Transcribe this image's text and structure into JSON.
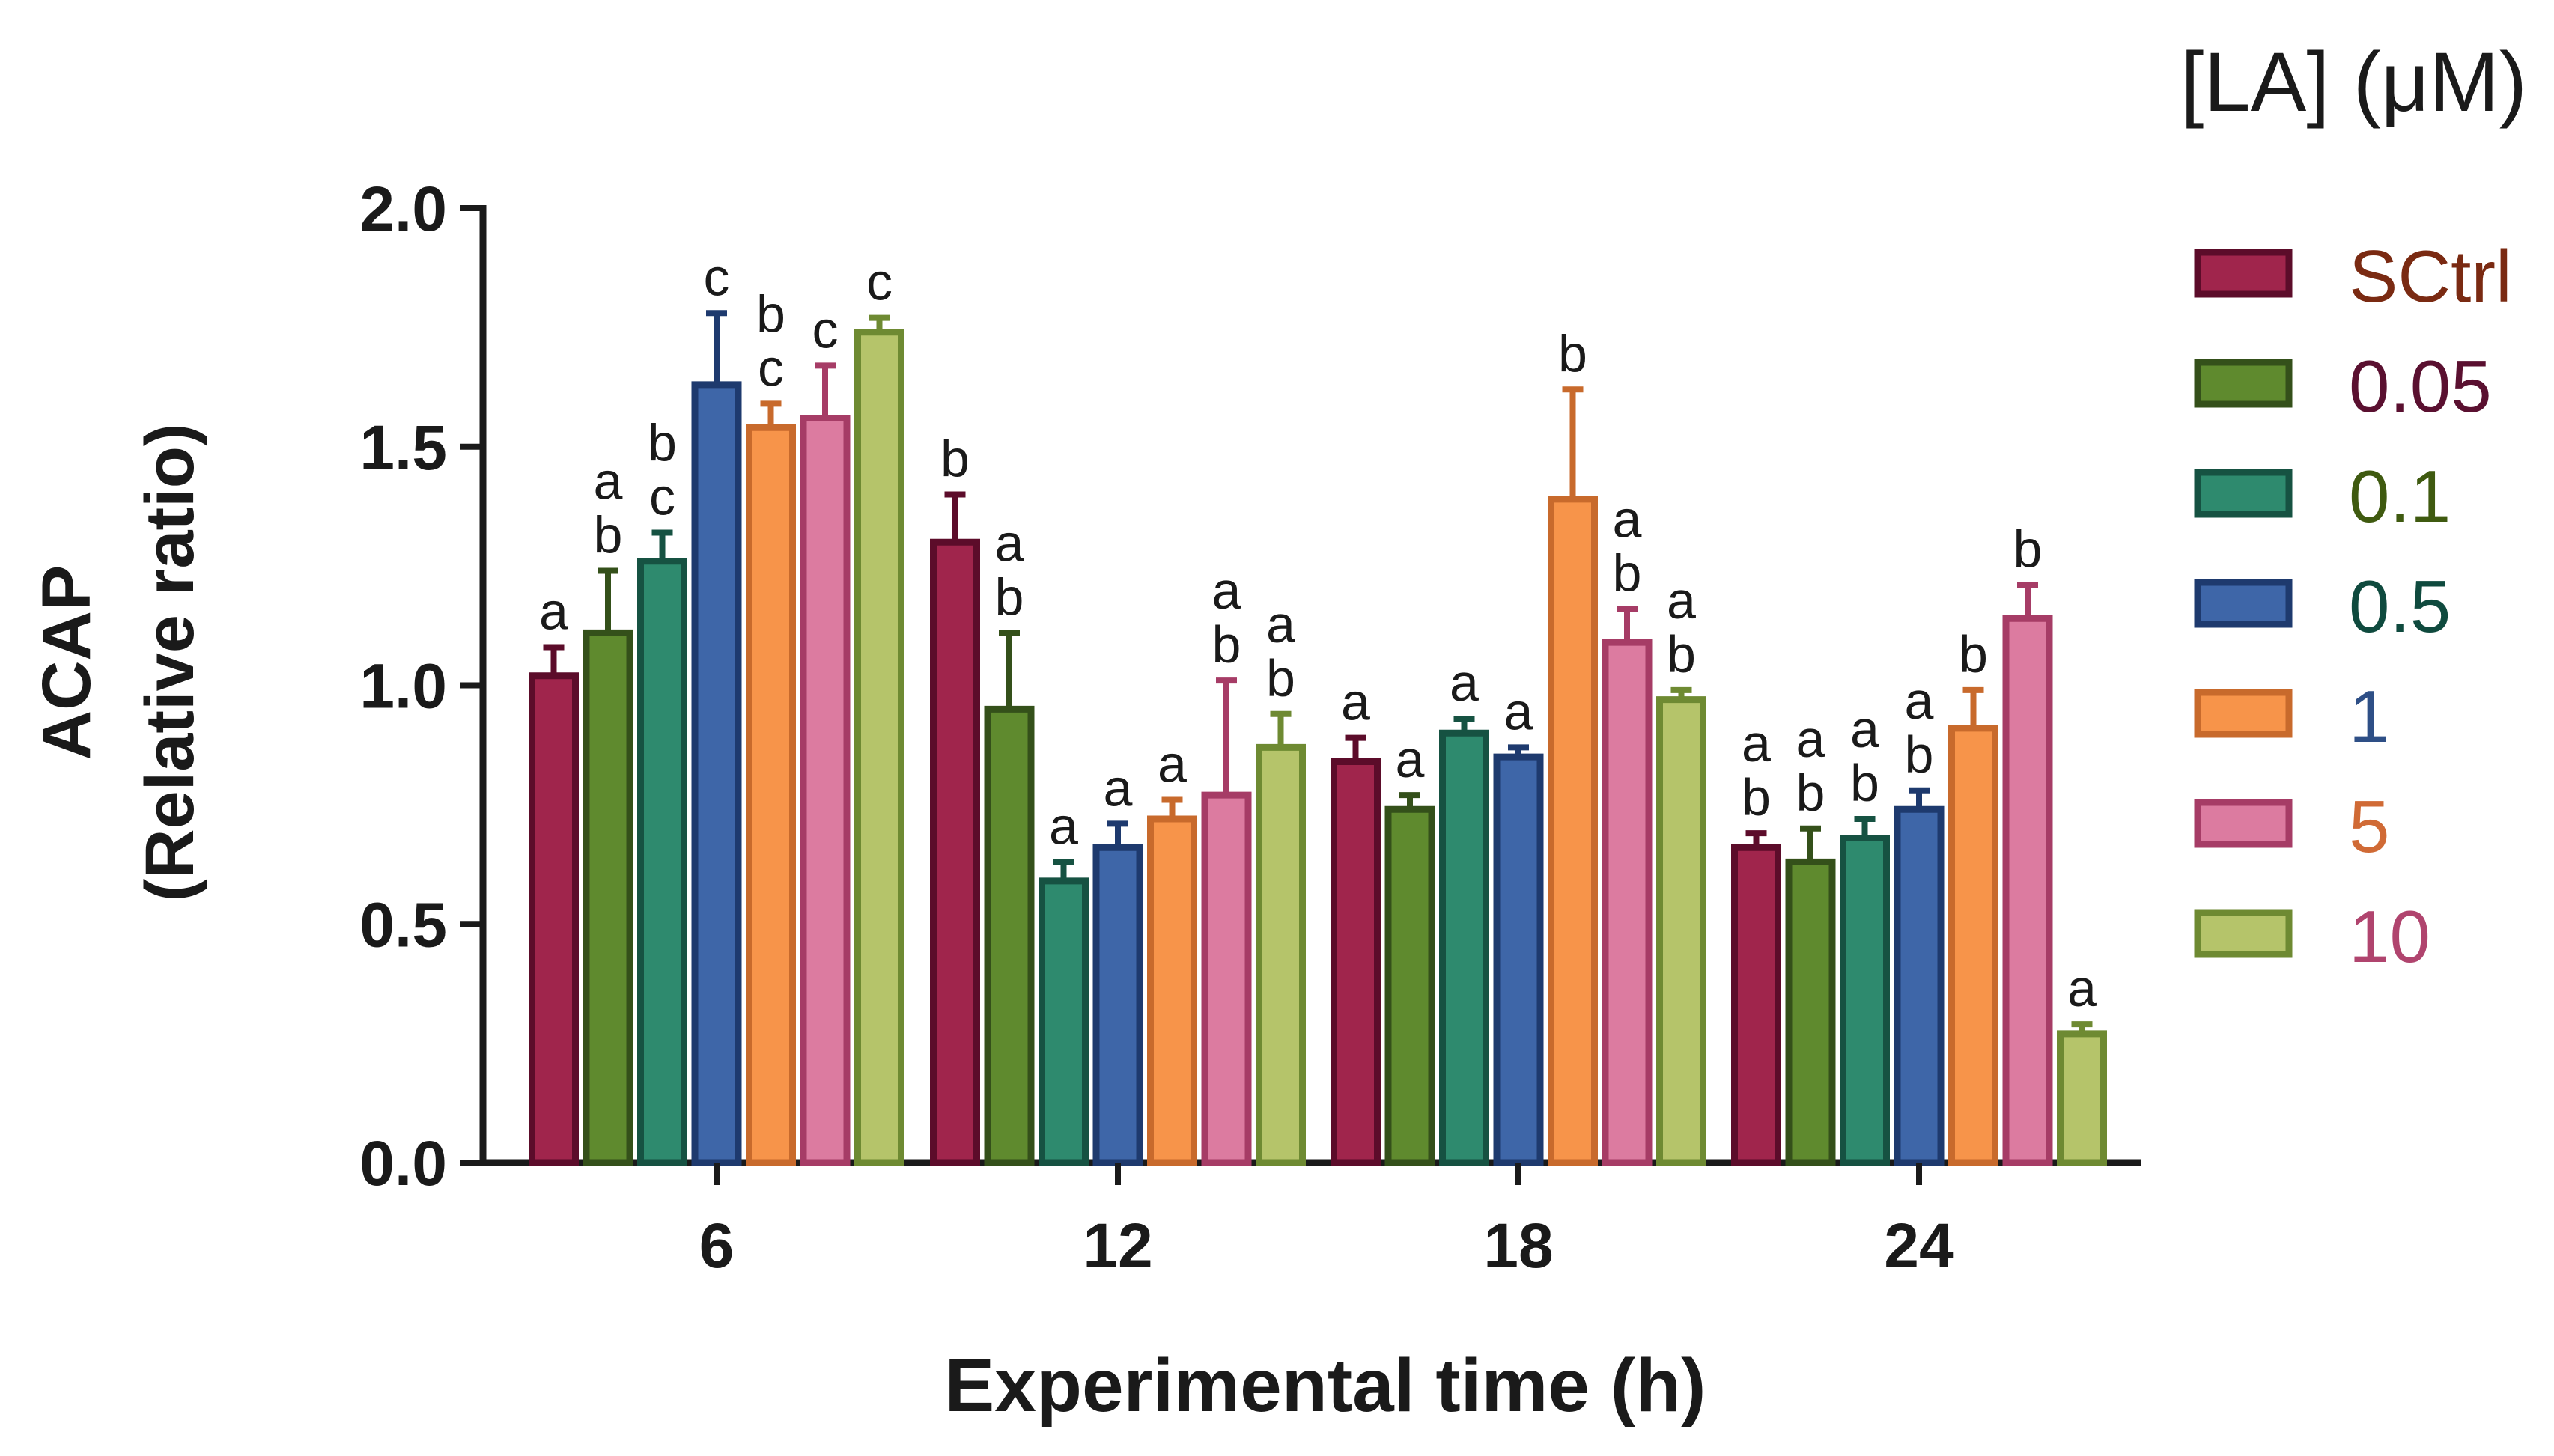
{
  "chart_data": {
    "type": "bar",
    "xlabel": "Experimental time (h)",
    "ylabel_line1": "ACAP",
    "ylabel_line2": "(Relative ratio)",
    "ylim": [
      0,
      2.0
    ],
    "yticks": [
      "0.0",
      "0.5",
      "1.0",
      "1.5",
      "2.0"
    ],
    "categories": [
      "6",
      "12",
      "18",
      "24"
    ],
    "legend": {
      "title": "[LA] (μM)",
      "position": "right",
      "labels": [
        "SCtrl",
        "0.05",
        "0.1",
        "0.5",
        "1",
        "5",
        "10"
      ],
      "label_colors": [
        "#7a2a12",
        "#5a1030",
        "#3f5a10",
        "#0f4a3e",
        "#2e4f86",
        "#d06a35",
        "#b0446e"
      ]
    },
    "series": [
      {
        "name": "SCtrl",
        "fill": "#a0254c",
        "stroke": "#5c0c2a",
        "values": [
          1.02,
          1.3,
          0.84,
          0.66
        ],
        "errors": [
          0.06,
          0.1,
          0.05,
          0.03
        ],
        "labels": [
          [
            "a"
          ],
          [
            "b"
          ],
          [
            "a"
          ],
          [
            "a",
            "b"
          ]
        ]
      },
      {
        "name": "0.05",
        "fill": "#5f8a2e",
        "stroke": "#34501a",
        "values": [
          1.11,
          0.95,
          0.74,
          0.63
        ],
        "errors": [
          0.13,
          0.16,
          0.03,
          0.07
        ],
        "labels": [
          [
            "a",
            "b"
          ],
          [
            "a",
            "b"
          ],
          [
            "a"
          ],
          [
            "a",
            "b"
          ]
        ]
      },
      {
        "name": "0.1",
        "fill": "#2e8a6e",
        "stroke": "#165242",
        "values": [
          1.26,
          0.59,
          0.9,
          0.68
        ],
        "errors": [
          0.06,
          0.04,
          0.03,
          0.04
        ],
        "labels": [
          [
            "b",
            "c"
          ],
          [
            "a"
          ],
          [
            "a"
          ],
          [
            "a",
            "b"
          ]
        ]
      },
      {
        "name": "0.5",
        "fill": "#3e66a8",
        "stroke": "#1e3a6e",
        "values": [
          1.63,
          0.66,
          0.85,
          0.74
        ],
        "errors": [
          0.15,
          0.05,
          0.02,
          0.04
        ],
        "labels": [
          [
            "c"
          ],
          [
            "a"
          ],
          [
            "a"
          ],
          [
            "a",
            "b"
          ]
        ]
      },
      {
        "name": "1",
        "fill": "#f7944a",
        "stroke": "#c86a2c",
        "values": [
          1.54,
          0.72,
          1.39,
          0.91
        ],
        "errors": [
          0.05,
          0.04,
          0.23,
          0.08
        ],
        "labels": [
          [
            "b",
            "c"
          ],
          [
            "a"
          ],
          [
            "b"
          ],
          [
            "b"
          ]
        ]
      },
      {
        "name": "5",
        "fill": "#dc7ba0",
        "stroke": "#a63c66",
        "values": [
          1.56,
          0.77,
          1.09,
          1.14
        ],
        "errors": [
          0.11,
          0.24,
          0.07,
          0.07
        ],
        "labels": [
          [
            "c"
          ],
          [
            "a",
            "b"
          ],
          [
            "a",
            "b"
          ],
          [
            "b"
          ]
        ]
      },
      {
        "name": "10",
        "fill": "#b5c46a",
        "stroke": "#6e8a32",
        "values": [
          1.74,
          0.87,
          0.97,
          0.27
        ],
        "errors": [
          0.03,
          0.07,
          0.02,
          0.02
        ],
        "labels": [
          [
            "c"
          ],
          [
            "a",
            "b"
          ],
          [
            "a",
            "b"
          ],
          [
            "a"
          ]
        ]
      }
    ]
  }
}
